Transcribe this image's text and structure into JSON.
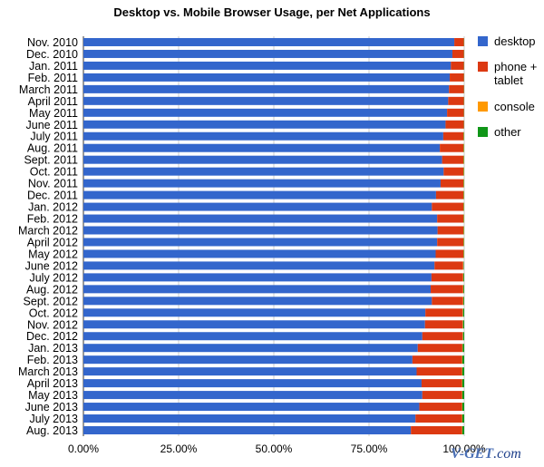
{
  "chart_data": {
    "type": "bar",
    "orientation": "horizontal",
    "stacked": true,
    "title": "Desktop vs. Mobile Browser Usage, per Net Applications",
    "xlabel": "",
    "ylabel": "",
    "xlim": [
      0,
      100
    ],
    "x_ticks": [
      "0.00%",
      "25.00%",
      "50.00%",
      "75.00%",
      "100.00%"
    ],
    "grid": true,
    "legend_position": "right",
    "categories": [
      "Nov. 2010",
      "Dec. 2010",
      "Jan. 2011",
      "Feb. 2011",
      "March 2011",
      "April 2011",
      "May 2011",
      "June 2011",
      "July 2011",
      "Aug. 2011",
      "Sept. 2011",
      "Oct. 2011",
      "Nov. 2011",
      "Dec. 2011",
      "Jan. 2012",
      "Feb. 2012",
      "March 2012",
      "April 2012",
      "May 2012",
      "June 2012",
      "July 2012",
      "Aug. 2012",
      "Sept. 2012",
      "Oct. 2012",
      "Nov. 2012",
      "Dec. 2012",
      "Jan. 2013",
      "Feb. 2013",
      "March 2013",
      "April 2013",
      "May 2013",
      "June 2013",
      "July 2013",
      "Aug. 2013"
    ],
    "series": [
      {
        "name": "desktop",
        "color": "#3366cc",
        "values": [
          97.4,
          96.9,
          96.5,
          96.2,
          96.0,
          95.8,
          95.5,
          95.1,
          94.5,
          93.6,
          94.2,
          94.6,
          93.8,
          92.6,
          91.5,
          92.9,
          93.0,
          92.9,
          92.5,
          92.2,
          91.4,
          91.2,
          91.5,
          89.8,
          89.7,
          89.0,
          87.8,
          86.4,
          87.5,
          88.8,
          89.0,
          88.2,
          87.2,
          86.0
        ]
      },
      {
        "name": "phone +\ntablet",
        "color": "#dc3912",
        "values": [
          2.5,
          3.0,
          3.4,
          3.7,
          3.9,
          4.1,
          4.4,
          4.8,
          5.3,
          6.2,
          5.6,
          5.2,
          6.0,
          7.2,
          8.3,
          6.9,
          6.8,
          6.9,
          7.3,
          7.5,
          8.3,
          8.5,
          8.2,
          9.8,
          9.9,
          10.6,
          11.7,
          13.0,
          11.9,
          10.6,
          10.4,
          11.2,
          12.2,
          13.4
        ]
      },
      {
        "name": "console",
        "color": "#ff9900",
        "values": [
          0.05,
          0.05,
          0.05,
          0.05,
          0.05,
          0.05,
          0.05,
          0.05,
          0.1,
          0.1,
          0.1,
          0.1,
          0.1,
          0.1,
          0.1,
          0.1,
          0.1,
          0.1,
          0.1,
          0.1,
          0.1,
          0.1,
          0.1,
          0.1,
          0.1,
          0.1,
          0.1,
          0.1,
          0.1,
          0.1,
          0.1,
          0.1,
          0.1,
          0.1
        ]
      },
      {
        "name": "other",
        "color": "#109618",
        "values": [
          0.05,
          0.05,
          0.05,
          0.05,
          0.05,
          0.05,
          0.05,
          0.05,
          0.1,
          0.1,
          0.1,
          0.1,
          0.1,
          0.1,
          0.1,
          0.1,
          0.1,
          0.1,
          0.1,
          0.1,
          0.2,
          0.2,
          0.2,
          0.3,
          0.3,
          0.3,
          0.4,
          0.5,
          0.5,
          0.5,
          0.5,
          0.5,
          0.5,
          0.5
        ]
      }
    ]
  },
  "watermark": {
    "brand": "V-GET",
    "domain": ".com"
  }
}
